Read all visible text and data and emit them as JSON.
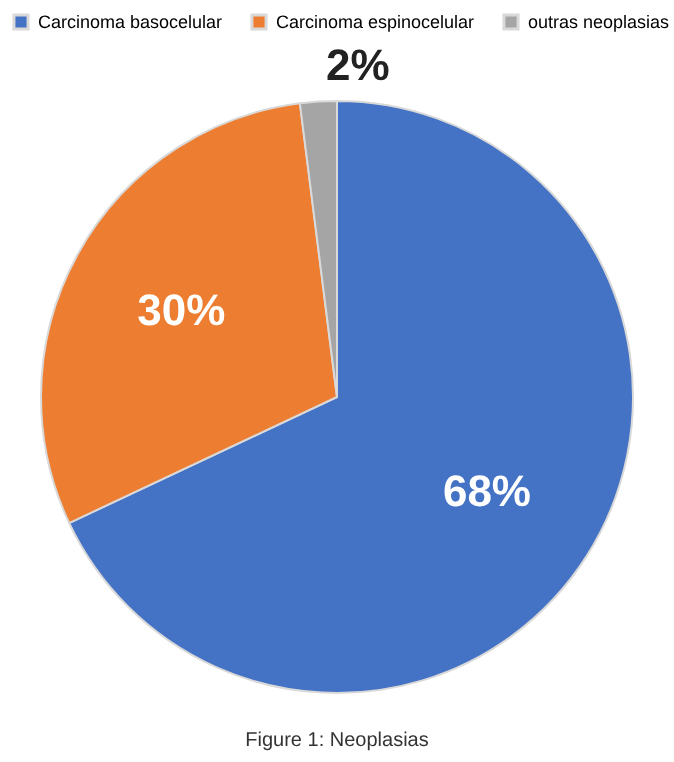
{
  "chart_data": {
    "type": "pie",
    "categories": [
      "Carcinoma basocelular",
      "Carcinoma espinocelular",
      "outras neoplasias"
    ],
    "values": [
      68,
      30,
      2
    ],
    "colors": [
      "#4472c4",
      "#ed7d31",
      "#a5a5a5"
    ],
    "value_labels": [
      "68%",
      "30%",
      "2%"
    ],
    "legend": "top",
    "annotations": [
      "Figure 1: Neoplasias"
    ]
  }
}
